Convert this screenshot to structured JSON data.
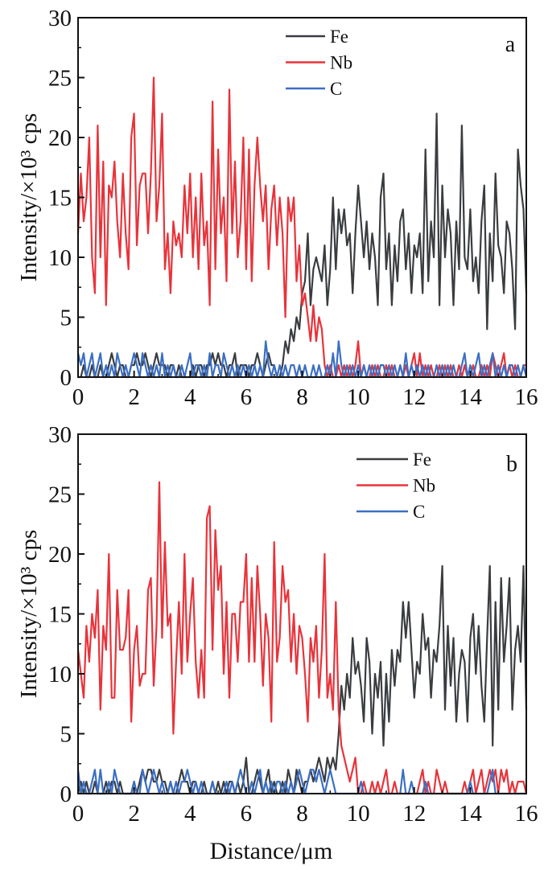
{
  "chart_data": [
    {
      "type": "line",
      "panel_label": "a",
      "xlabel": "",
      "ylabel": "Intensity/×10³ cps",
      "xlim": [
        0,
        16
      ],
      "ylim": [
        0,
        30
      ],
      "x_step": 0.1,
      "xticks": [
        "0",
        "2",
        "4",
        "6",
        "8",
        "10",
        "12",
        "14",
        "16"
      ],
      "yticks": [
        "0",
        "5",
        "10",
        "15",
        "20",
        "25",
        "30"
      ],
      "legend": "top-center",
      "series": [
        {
          "name": "Fe",
          "color": "#3a3d40",
          "values": [
            0,
            0,
            1,
            0,
            0,
            1,
            0,
            0,
            1,
            0,
            0,
            1,
            2,
            1,
            0,
            1,
            1,
            0,
            0,
            1,
            1,
            2,
            1,
            1,
            2,
            1,
            0,
            1,
            2,
            1,
            1,
            1,
            0,
            1,
            1,
            0,
            1,
            0,
            0,
            0,
            0,
            1,
            0,
            1,
            1,
            0,
            1,
            1,
            2,
            1,
            2,
            1,
            1,
            0,
            1,
            1,
            2,
            0,
            1,
            1,
            1,
            0,
            1,
            1,
            2,
            1,
            0,
            1,
            2,
            1,
            1,
            0,
            0,
            1,
            3,
            2,
            4,
            3,
            5,
            4,
            7,
            8,
            12,
            6,
            9,
            10,
            9,
            8,
            11,
            6,
            9,
            15,
            9,
            14,
            12,
            14,
            11,
            12,
            7,
            12,
            16,
            13,
            10,
            13,
            9,
            12,
            10,
            6,
            15,
            17,
            9,
            12,
            6,
            11,
            8,
            13,
            14,
            9,
            12,
            7,
            11,
            10,
            12,
            7,
            19,
            8,
            13,
            10,
            22,
            6,
            16,
            10,
            14,
            12,
            6,
            13,
            9,
            21,
            10,
            9,
            14,
            8,
            10,
            7,
            13,
            16,
            4,
            12,
            8,
            17,
            11,
            10,
            7,
            13,
            12,
            9,
            4,
            19,
            16,
            14,
            7
          ]
        },
        {
          "name": "Nb",
          "color": "#e8333a",
          "values": [
            12,
            17,
            13,
            15,
            20,
            10,
            7,
            21,
            10,
            18,
            6,
            16,
            15,
            18,
            13,
            10,
            17,
            12,
            9,
            20,
            22,
            11,
            16,
            17,
            17,
            12,
            17,
            25,
            13,
            16,
            22,
            9,
            12,
            7,
            13,
            11,
            12,
            10,
            16,
            12,
            17,
            10,
            15,
            9,
            17,
            11,
            13,
            6,
            23,
            9,
            19,
            12,
            15,
            8,
            24,
            12,
            18,
            10,
            13,
            20,
            9,
            19,
            8,
            16,
            20,
            16,
            13,
            16,
            9,
            14,
            16,
            11,
            15,
            12,
            5,
            15,
            13,
            15,
            8,
            11,
            6,
            7,
            5,
            3,
            6,
            3,
            5,
            4,
            1,
            0,
            1,
            0,
            0,
            1,
            0,
            1,
            0,
            1,
            0,
            1,
            3,
            0,
            1,
            0,
            0,
            1,
            0,
            1,
            0,
            0,
            1,
            0,
            1,
            0,
            0,
            1,
            0,
            1,
            0,
            1,
            2,
            0,
            2,
            0,
            1,
            0,
            1,
            0,
            0,
            1,
            0,
            1,
            0,
            1,
            0,
            0,
            1,
            0,
            1,
            0,
            0,
            1,
            0,
            0,
            1,
            0,
            1,
            0,
            2,
            1,
            0,
            1,
            2,
            0,
            1,
            0,
            1,
            0,
            0,
            1,
            1
          ]
        },
        {
          "name": "C",
          "color": "#3b6fc4",
          "values": [
            2,
            1,
            2,
            0,
            1,
            2,
            0,
            1,
            2,
            0,
            1,
            0,
            1,
            0,
            2,
            1,
            0,
            1,
            0,
            1,
            2,
            1,
            0,
            2,
            1,
            0,
            1,
            0,
            1,
            0,
            2,
            0,
            1,
            0,
            1,
            0,
            0,
            1,
            0,
            1,
            2,
            0,
            1,
            1,
            0,
            1,
            0,
            2,
            0,
            1,
            1,
            0,
            2,
            1,
            0,
            1,
            0,
            1,
            0,
            1,
            0,
            1,
            0,
            1,
            0,
            1,
            0,
            3,
            1,
            0,
            1,
            0,
            1,
            0,
            1,
            0,
            1,
            1,
            0,
            1,
            0,
            1,
            0,
            0,
            1,
            0,
            1,
            0,
            0,
            1,
            0,
            2,
            0,
            3,
            1,
            0,
            1,
            0,
            1,
            0,
            1,
            0,
            1,
            0,
            1,
            0,
            1,
            0,
            1,
            1,
            0,
            1,
            0,
            1,
            0,
            1,
            0,
            2,
            0,
            1,
            0,
            1,
            0,
            1,
            0,
            1,
            0,
            0,
            1,
            0,
            1,
            0,
            1,
            0,
            1,
            0,
            0,
            1,
            2,
            0,
            1,
            0,
            1,
            2,
            0,
            1,
            0,
            1,
            2,
            0,
            1,
            0,
            1,
            0,
            1,
            1,
            0,
            1,
            0,
            1,
            0
          ]
        }
      ]
    },
    {
      "type": "line",
      "panel_label": "b",
      "xlabel": "Distance/μm",
      "ylabel": "Intensity/×10³ cps",
      "xlim": [
        0,
        16
      ],
      "ylim": [
        0,
        30
      ],
      "x_step": 0.1,
      "xticks": [
        "0",
        "2",
        "4",
        "6",
        "8",
        "10",
        "12",
        "14",
        "16"
      ],
      "yticks": [
        "0",
        "5",
        "10",
        "15",
        "20",
        "25",
        "30"
      ],
      "legend": "top-right",
      "series": [
        {
          "name": "Fe",
          "color": "#3a3d40",
          "values": [
            0,
            1,
            0,
            1,
            0,
            0,
            1,
            0,
            0,
            0,
            1,
            0,
            1,
            1,
            0,
            1,
            0,
            0,
            0,
            0,
            1,
            0,
            1,
            2,
            1,
            2,
            2,
            1,
            1,
            2,
            1,
            1,
            0,
            1,
            0,
            0,
            1,
            2,
            1,
            1,
            0,
            1,
            1,
            0,
            0,
            1,
            0,
            0,
            1,
            0,
            1,
            0,
            1,
            0,
            1,
            1,
            0,
            1,
            0,
            1,
            3,
            0,
            0,
            1,
            2,
            1,
            0,
            1,
            2,
            0,
            1,
            0,
            0,
            1,
            0,
            2,
            1,
            0,
            2,
            1,
            0,
            1,
            1,
            2,
            1,
            2,
            3,
            2,
            1,
            3,
            2,
            3,
            2,
            5,
            9,
            7,
            10,
            8,
            13,
            10,
            11,
            9,
            6,
            13,
            11,
            5,
            10,
            8,
            11,
            4,
            10,
            6,
            12,
            9,
            12,
            11,
            16,
            13,
            16,
            12,
            8,
            11,
            10,
            15,
            12,
            13,
            8,
            12,
            11,
            14,
            19,
            7,
            14,
            9,
            13,
            6,
            10,
            12,
            11,
            6,
            13,
            15,
            10,
            14,
            9,
            6,
            13,
            19,
            4,
            16,
            7,
            18,
            11,
            14,
            18,
            7,
            12,
            14,
            11,
            19,
            7
          ]
        },
        {
          "name": "Nb",
          "color": "#e8333a",
          "values": [
            12,
            10,
            8,
            14,
            11,
            15,
            13,
            17,
            7,
            14,
            12,
            20,
            8,
            8,
            17,
            12,
            12,
            13,
            17,
            6,
            12,
            14,
            9,
            10,
            10,
            17,
            18,
            9,
            14,
            26,
            13,
            21,
            14,
            15,
            5,
            11,
            16,
            10,
            20,
            11,
            15,
            18,
            11,
            8,
            12,
            8,
            23,
            24,
            12,
            22,
            17,
            19,
            10,
            16,
            8,
            15,
            15,
            11,
            16,
            16,
            20,
            11,
            18,
            11,
            19,
            15,
            9,
            15,
            13,
            6,
            21,
            11,
            13,
            19,
            16,
            17,
            11,
            15,
            10,
            14,
            13,
            10,
            6,
            13,
            11,
            14,
            8,
            12,
            20,
            8,
            10,
            7,
            16,
            7,
            4,
            3,
            2,
            1,
            2,
            3,
            0,
            0,
            1,
            0,
            0,
            1,
            0,
            1,
            0,
            1,
            2,
            0,
            0,
            1,
            0,
            0,
            0,
            0,
            0,
            0,
            0,
            0,
            1,
            2,
            0,
            1,
            0,
            0,
            2,
            1,
            0,
            1,
            0,
            0,
            0,
            0,
            0,
            0,
            1,
            0,
            1,
            2,
            0,
            1,
            2,
            0,
            1,
            2,
            1,
            2,
            0,
            2,
            1,
            2,
            0,
            1,
            0,
            1,
            1,
            1,
            0
          ]
        },
        {
          "name": "C",
          "color": "#3b6fc4",
          "values": [
            2,
            0,
            1,
            0,
            0,
            1,
            2,
            0,
            2,
            0,
            0,
            1,
            0,
            2,
            1,
            0,
            0,
            0,
            0,
            0,
            1,
            0,
            0,
            2,
            1,
            0,
            1,
            2,
            1,
            0,
            1,
            0,
            0,
            1,
            0,
            1,
            0,
            1,
            1,
            2,
            1,
            0,
            1,
            0,
            1,
            0,
            0,
            0,
            1,
            0,
            0,
            0,
            0,
            1,
            0,
            1,
            0,
            1,
            2,
            1,
            0,
            0,
            1,
            0,
            1,
            2,
            0,
            1,
            0,
            1,
            0,
            1,
            1,
            0,
            1,
            0,
            1,
            0,
            1,
            2,
            1,
            0,
            1,
            2,
            2,
            1,
            2,
            1,
            0,
            1,
            2,
            1,
            0,
            0,
            0,
            0,
            0,
            0,
            0,
            0,
            0,
            1,
            0,
            0,
            0,
            0,
            0,
            0,
            0,
            0,
            0,
            0,
            0,
            0,
            0,
            0,
            2,
            0,
            0,
            1,
            0,
            0,
            0,
            0,
            1,
            0,
            0,
            0,
            0,
            0,
            0,
            0,
            0,
            0,
            0,
            0,
            0,
            0,
            0,
            0,
            1,
            0,
            0,
            0,
            0,
            0,
            0,
            1,
            2,
            0,
            0,
            0,
            0,
            0,
            0,
            0,
            0,
            0,
            0,
            0,
            0
          ]
        }
      ]
    }
  ]
}
